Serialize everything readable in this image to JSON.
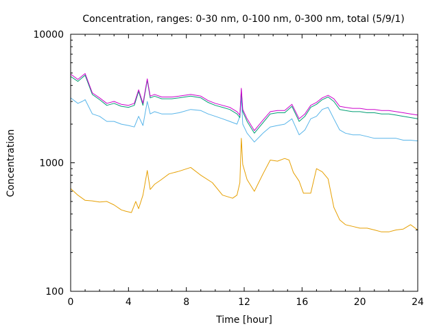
{
  "chart_data": {
    "type": "line",
    "title": "Concentration, ranges: 0-30 nm, 0-100 nm, 0-300 nm, total (5/9/1)",
    "xlabel": "Time [hour]",
    "ylabel": "Concentration",
    "xlim": [
      0,
      24
    ],
    "ylim": [
      100,
      10000
    ],
    "yscale": "log",
    "grid": false,
    "legend": "none",
    "x_ticks": [
      0,
      4,
      8,
      12,
      16,
      20,
      24
    ],
    "x_tick_labels": [
      "0",
      "4",
      "8",
      "12",
      "16",
      "20",
      "24"
    ],
    "y_ticks": [
      100,
      1000,
      10000
    ],
    "y_tick_labels": [
      "100",
      "1000",
      "10000"
    ],
    "series": [
      {
        "color": "#e69f00",
        "x": [
          0,
          0.5,
          1,
          1.5,
          2,
          2.5,
          3,
          3.5,
          3.8,
          4.2,
          4.5,
          4.7,
          5,
          5.3,
          5.5,
          5.8,
          6.2,
          6.8,
          7.5,
          8.3,
          9,
          9.8,
          10.5,
          11.2,
          11.5,
          11.7,
          11.8,
          11.9,
          12.2,
          12.7,
          13.3,
          13.8,
          14.3,
          14.8,
          15.1,
          15.4,
          15.8,
          16.1,
          16.6,
          17,
          17.4,
          17.8,
          18.2,
          18.6,
          19,
          19.5,
          20,
          20.5,
          21,
          21.5,
          22,
          22.5,
          23,
          23.5,
          24
        ],
        "values": [
          630,
          560,
          510,
          505,
          495,
          500,
          470,
          430,
          420,
          410,
          500,
          440,
          560,
          870,
          620,
          680,
          730,
          820,
          860,
          920,
          800,
          700,
          560,
          530,
          560,
          700,
          1550,
          970,
          740,
          600,
          820,
          1050,
          1030,
          1080,
          1050,
          840,
          720,
          580,
          580,
          900,
          850,
          750,
          450,
          360,
          330,
          320,
          310,
          310,
          300,
          290,
          290,
          300,
          305,
          330,
          300
        ]
      },
      {
        "color": "#56b4e9",
        "x": [
          0,
          0.5,
          0.8,
          1,
          1.5,
          2,
          2.5,
          3,
          3.5,
          4,
          4.4,
          4.7,
          5,
          5.3,
          5.5,
          5.8,
          6.3,
          7,
          7.5,
          8.3,
          9,
          9.5,
          10,
          10.5,
          11,
          11.5,
          11.7,
          11.8,
          11.9,
          12.2,
          12.7,
          13.3,
          13.8,
          14.3,
          14.8,
          15.3,
          15.8,
          16.2,
          16.6,
          17,
          17.4,
          17.8,
          18.2,
          18.6,
          19,
          19.5,
          20,
          20.5,
          21,
          21.5,
          22,
          22.5,
          23,
          23.5,
          24
        ],
        "values": [
          3200,
          2900,
          3000,
          3100,
          2400,
          2300,
          2100,
          2100,
          2000,
          1950,
          1900,
          2300,
          1950,
          3000,
          2400,
          2500,
          2400,
          2400,
          2450,
          2600,
          2550,
          2400,
          2300,
          2200,
          2100,
          2000,
          2300,
          3300,
          2000,
          1700,
          1450,
          1700,
          1900,
          1950,
          2000,
          2200,
          1650,
          1800,
          2200,
          2300,
          2600,
          2700,
          2200,
          1800,
          1700,
          1650,
          1650,
          1600,
          1550,
          1550,
          1550,
          1550,
          1500,
          1500,
          1480
        ]
      },
      {
        "color": "#009e73",
        "x": [
          0,
          0.5,
          0.8,
          1,
          1.5,
          2,
          2.5,
          3,
          3.5,
          4,
          4.4,
          4.7,
          5,
          5.3,
          5.5,
          5.8,
          6.3,
          7,
          7.5,
          8.3,
          9,
          9.5,
          10,
          10.5,
          11,
          11.5,
          11.7,
          11.8,
          11.9,
          12.2,
          12.7,
          13.3,
          13.8,
          14.3,
          14.8,
          15.3,
          15.8,
          16.2,
          16.6,
          17,
          17.4,
          17.8,
          18.2,
          18.6,
          19,
          19.5,
          20,
          20.5,
          21,
          21.5,
          22,
          22.5,
          23,
          23.5,
          24
        ],
        "values": [
          4700,
          4300,
          4600,
          4800,
          3400,
          3100,
          2800,
          2900,
          2750,
          2700,
          2800,
          3600,
          2800,
          4400,
          3200,
          3300,
          3150,
          3150,
          3200,
          3300,
          3200,
          2950,
          2800,
          2700,
          2600,
          2400,
          2250,
          3700,
          2500,
          2100,
          1700,
          2050,
          2400,
          2450,
          2450,
          2750,
          2100,
          2300,
          2700,
          2850,
          3100,
          3250,
          3000,
          2600,
          2550,
          2500,
          2500,
          2450,
          2450,
          2400,
          2400,
          2350,
          2300,
          2250,
          2200
        ]
      },
      {
        "color": "#cc00cc",
        "x": [
          0,
          0.5,
          0.8,
          1,
          1.5,
          2,
          2.5,
          3,
          3.5,
          4,
          4.4,
          4.7,
          5,
          5.3,
          5.5,
          5.8,
          6.3,
          7,
          7.5,
          8.3,
          9,
          9.5,
          10,
          10.5,
          11,
          11.5,
          11.7,
          11.8,
          11.9,
          12.2,
          12.7,
          13.3,
          13.8,
          14.3,
          14.8,
          15.3,
          15.8,
          16.2,
          16.6,
          17,
          17.4,
          17.8,
          18.2,
          18.6,
          19,
          19.5,
          20,
          20.5,
          21,
          21.5,
          22,
          22.5,
          23,
          23.5,
          24
        ],
        "values": [
          4900,
          4450,
          4750,
          4950,
          3500,
          3200,
          2900,
          3000,
          2850,
          2800,
          2900,
          3700,
          2900,
          4500,
          3300,
          3400,
          3250,
          3250,
          3300,
          3400,
          3300,
          3050,
          2900,
          2800,
          2700,
          2500,
          2350,
          3800,
          2600,
          2200,
          1780,
          2150,
          2500,
          2550,
          2550,
          2850,
          2200,
          2400,
          2800,
          2950,
          3200,
          3350,
          3150,
          2750,
          2700,
          2650,
          2650,
          2600,
          2600,
          2550,
          2550,
          2500,
          2450,
          2400,
          2350
        ]
      }
    ]
  }
}
